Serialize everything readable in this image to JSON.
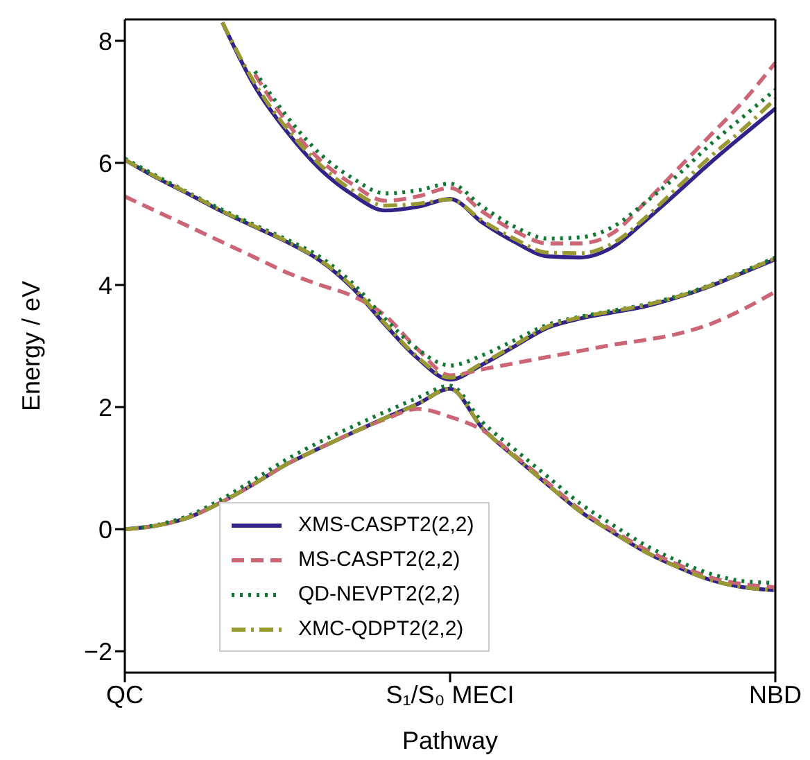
{
  "chart_data": {
    "type": "line",
    "xlabel": "Pathway",
    "ylabel": "Energy / eV",
    "categories": [
      "QC",
      null,
      null,
      null,
      null,
      null,
      null,
      null,
      null,
      null,
      "S₁/S₀ MECI",
      null,
      null,
      null,
      null,
      null,
      null,
      null,
      null,
      null,
      "NBD"
    ],
    "ylim": [
      -2.35,
      8.35
    ],
    "yticks": [
      {
        "value": -2,
        "label": "−2"
      },
      0,
      2,
      4,
      6,
      8
    ],
    "grid": false,
    "legend": "bottom",
    "marker": "none",
    "series": [
      {
        "name": "XMS-CASPT2(2,2)",
        "color": "#332288",
        "line_style": "solid",
        "values": [
          0,
          0.06,
          0.2,
          0.45,
          0.75,
          1.07,
          1.33,
          1.58,
          1.82,
          2.05,
          2.3,
          1.65,
          1.18,
          0.73,
          0.29,
          -0.05,
          -0.37,
          -0.62,
          -0.83,
          -0.95,
          -1
        ]
      },
      {
        "color": "#332288",
        "line_style": "solid",
        "values": [
          6.05,
          5.75,
          5.48,
          5.2,
          4.95,
          4.7,
          4.4,
          3.95,
          3.35,
          2.8,
          2.45,
          2.7,
          3.0,
          3.3,
          3.45,
          3.55,
          3.65,
          3.8,
          3.98,
          4.2,
          4.42
        ]
      },
      {
        "color": "#332288",
        "line_style": "solid",
        "values": [
          null,
          null,
          null,
          8.3,
          7.25,
          6.5,
          5.9,
          5.48,
          5.22,
          5.28,
          5.41,
          5.02,
          4.7,
          4.47,
          4.45,
          4.62,
          5.05,
          5.52,
          6.0,
          6.45,
          6.89
        ]
      },
      {
        "name": "MS-CASPT2(2,2)",
        "color": "#cc6677",
        "line_style": "dashed",
        "values": [
          0,
          0.06,
          0.2,
          0.45,
          0.75,
          1.07,
          1.33,
          1.58,
          1.8,
          1.97,
          1.84,
          1.62,
          1.2,
          0.76,
          0.32,
          -0.02,
          -0.33,
          -0.58,
          -0.79,
          -0.9,
          -0.95
        ]
      },
      {
        "color": "#cc6677",
        "line_style": "dashed",
        "values": [
          5.45,
          5.2,
          4.95,
          4.7,
          4.45,
          4.2,
          4.0,
          3.82,
          3.5,
          2.95,
          2.52,
          2.62,
          2.72,
          2.82,
          2.92,
          3.02,
          3.1,
          3.2,
          3.36,
          3.6,
          3.89
        ]
      },
      {
        "color": "#cc6677",
        "line_style": "dashed",
        "values": [
          null,
          null,
          null,
          null,
          7.45,
          6.65,
          6.05,
          5.65,
          5.38,
          5.45,
          5.59,
          5.2,
          4.88,
          4.68,
          4.68,
          4.85,
          5.35,
          5.9,
          6.45,
          7.0,
          7.64
        ]
      },
      {
        "name": "QD-NEVPT2(2,2)",
        "color": "#117733",
        "line_style": "dotted",
        "values": [
          0,
          0.07,
          0.23,
          0.5,
          0.82,
          1.15,
          1.43,
          1.68,
          1.92,
          2.15,
          2.35,
          1.75,
          1.3,
          0.86,
          0.42,
          0.07,
          -0.26,
          -0.52,
          -0.73,
          -0.85,
          -0.88
        ]
      },
      {
        "color": "#117733",
        "line_style": "dotted",
        "values": [
          6.07,
          5.78,
          5.5,
          5.23,
          4.98,
          4.74,
          4.46,
          4.03,
          3.45,
          2.95,
          2.68,
          2.85,
          3.1,
          3.35,
          3.48,
          3.58,
          3.68,
          3.82,
          4.0,
          4.22,
          4.45
        ]
      },
      {
        "color": "#117733",
        "line_style": "dotted",
        "values": [
          null,
          null,
          null,
          null,
          7.5,
          6.75,
          6.15,
          5.75,
          5.5,
          5.55,
          5.66,
          5.28,
          4.95,
          4.76,
          4.78,
          4.95,
          5.35,
          5.8,
          6.3,
          6.75,
          7.2
        ]
      },
      {
        "name": "XMC-QDPT2(2,2)",
        "color": "#999933",
        "line_style": "dashdot",
        "values": [
          0,
          0.06,
          0.2,
          0.45,
          0.75,
          1.07,
          1.33,
          1.58,
          1.82,
          2.05,
          2.3,
          1.65,
          1.18,
          0.73,
          0.29,
          -0.05,
          -0.37,
          -0.62,
          -0.83,
          -0.95,
          -1
        ]
      },
      {
        "color": "#999933",
        "line_style": "dashdot",
        "values": [
          6.05,
          5.76,
          5.49,
          5.21,
          4.96,
          4.71,
          4.41,
          3.97,
          3.37,
          2.82,
          2.48,
          2.72,
          3.02,
          3.32,
          3.47,
          3.57,
          3.67,
          3.81,
          3.99,
          4.21,
          4.44
        ]
      },
      {
        "color": "#999933",
        "line_style": "dashdot",
        "values": [
          null,
          null,
          null,
          8.3,
          7.3,
          6.55,
          5.97,
          5.55,
          5.3,
          5.33,
          5.4,
          5.05,
          4.75,
          4.53,
          4.52,
          4.68,
          5.1,
          5.6,
          6.1,
          6.55,
          7.05
        ]
      }
    ]
  }
}
